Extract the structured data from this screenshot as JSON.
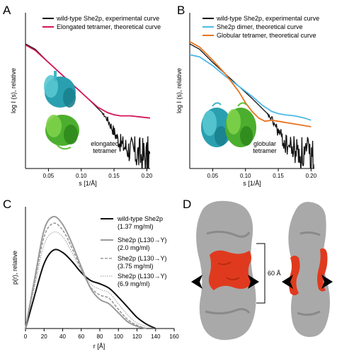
{
  "panels": {
    "A": {
      "letter": "A",
      "legend": [
        "wild-type She2p, experimental curve",
        "Elongated tetramer, theoretical curve"
      ],
      "ylabel": "log I (s), relative",
      "xlabel": "s [1/Å]",
      "xticks": [
        "0.05",
        "0.10",
        "0.15",
        "0.20"
      ],
      "model_label": [
        "elongated",
        "tetramer"
      ]
    },
    "B": {
      "letter": "B",
      "legend": [
        "wild-type She2p, experimental curve",
        "She2p dimer, theoretical curve",
        "Globular tetramer, theoretical curve"
      ],
      "ylabel": "log I (s), relative",
      "xlabel": "s [1/Å]",
      "xticks": [
        "0.05",
        "0.10",
        "0.15",
        "0.20"
      ],
      "model_label": [
        "globular",
        "tetramer"
      ]
    },
    "C": {
      "letter": "C",
      "ylabel": "p(r), relative",
      "xlabel": "r [Å]",
      "xticks": [
        "0",
        "20",
        "40",
        "60",
        "80",
        "100",
        "120",
        "140",
        "160"
      ],
      "legend": [
        {
          "name": "wild-type She2p",
          "conc": "(1.37 mg/ml)"
        },
        {
          "name": "She2p (L130→Y)",
          "conc": "(2.0 mg/ml)"
        },
        {
          "name": "She2p (L130→Y)",
          "conc": "(3.75 mg/ml)"
        },
        {
          "name": "She2p (L130→Y)",
          "conc": "(6.9 mg/ml)"
        }
      ]
    },
    "D": {
      "letter": "D",
      "dimension": "60 Å"
    }
  },
  "colors": {
    "black": "#111111",
    "magenta": "#d4145a",
    "cyan": "#4fb8e6",
    "orange": "#e8731e",
    "gray": "#9a9a9a",
    "red": "#e03a1e"
  },
  "chart_data": [
    {
      "type": "line",
      "panel": "A",
      "xlabel": "s [1/Å]",
      "ylabel": "log I (s), relative",
      "xlim": [
        0.015,
        0.205
      ],
      "series": [
        {
          "name": "wild-type She2p, experimental curve",
          "x": [
            0.015,
            0.03,
            0.05,
            0.07,
            0.09,
            0.11,
            0.125,
            0.14,
            0.15,
            0.16,
            0.175,
            0.19,
            0.205
          ],
          "y": [
            1.0,
            0.95,
            0.83,
            0.72,
            0.61,
            0.5,
            0.41,
            0.32,
            0.22,
            0.12,
            0.08,
            0.05,
            0.03
          ]
        },
        {
          "name": "Elongated tetramer, theoretical curve",
          "x": [
            0.015,
            0.03,
            0.05,
            0.07,
            0.09,
            0.11,
            0.125,
            0.14,
            0.15,
            0.16,
            0.175,
            0.19,
            0.205
          ],
          "y": [
            0.99,
            0.94,
            0.83,
            0.72,
            0.61,
            0.5,
            0.42,
            0.37,
            0.35,
            0.34,
            0.34,
            0.33,
            0.32
          ]
        }
      ]
    },
    {
      "type": "line",
      "panel": "B",
      "xlabel": "s [1/Å]",
      "ylabel": "log I (s), relative",
      "xlim": [
        0.015,
        0.205
      ],
      "series": [
        {
          "name": "wild-type She2p, experimental curve",
          "x": [
            0.015,
            0.03,
            0.05,
            0.07,
            0.09,
            0.11,
            0.125,
            0.14,
            0.15,
            0.16,
            0.175,
            0.19,
            0.205
          ],
          "y": [
            1.0,
            0.95,
            0.83,
            0.72,
            0.61,
            0.5,
            0.41,
            0.32,
            0.22,
            0.12,
            0.08,
            0.05,
            0.03
          ]
        },
        {
          "name": "She2p dimer, theoretical curve",
          "x": [
            0.015,
            0.03,
            0.05,
            0.07,
            0.09,
            0.11,
            0.125,
            0.14,
            0.15,
            0.16,
            0.175,
            0.19,
            0.2
          ],
          "y": [
            0.9,
            0.88,
            0.8,
            0.7,
            0.61,
            0.52,
            0.44,
            0.38,
            0.36,
            0.35,
            0.34,
            0.32,
            0.3
          ]
        },
        {
          "name": "Globular tetramer, theoretical curve",
          "x": [
            0.015,
            0.03,
            0.05,
            0.07,
            0.09,
            0.1,
            0.11,
            0.12,
            0.13,
            0.14,
            0.15,
            0.17,
            0.2
          ],
          "y": [
            1.02,
            0.97,
            0.85,
            0.72,
            0.56,
            0.46,
            0.38,
            0.32,
            0.29,
            0.3,
            0.29,
            0.27,
            0.24
          ]
        }
      ]
    },
    {
      "type": "line",
      "panel": "C",
      "xlabel": "r [Å]",
      "ylabel": "p(r), relative",
      "xlim": [
        0,
        160
      ],
      "series": [
        {
          "name": "wild-type She2p (1.37 mg/ml)",
          "x": [
            0,
            10,
            20,
            30,
            40,
            50,
            60,
            70,
            80,
            90,
            100,
            110,
            120,
            130,
            140
          ],
          "y": [
            0,
            0.3,
            0.58,
            0.7,
            0.68,
            0.6,
            0.5,
            0.43,
            0.4,
            0.36,
            0.28,
            0.19,
            0.1,
            0.04,
            0
          ]
        },
        {
          "name": "She2p (L130→Y) (2.0 mg/ml)",
          "x": [
            0,
            10,
            20,
            30,
            40,
            50,
            60,
            70,
            80,
            90,
            100,
            110,
            120,
            130
          ],
          "y": [
            0,
            0.45,
            0.88,
            1.0,
            0.93,
            0.76,
            0.55,
            0.36,
            0.26,
            0.22,
            0.14,
            0.06,
            0.02,
            0
          ]
        },
        {
          "name": "She2p (L130→Y) (3.75 mg/ml)",
          "x": [
            0,
            10,
            20,
            30,
            40,
            50,
            60,
            70,
            80,
            90,
            100,
            110,
            120,
            130
          ],
          "y": [
            0,
            0.42,
            0.82,
            0.94,
            0.88,
            0.72,
            0.53,
            0.37,
            0.3,
            0.27,
            0.17,
            0.08,
            0.03,
            0
          ]
        },
        {
          "name": "She2p (L130→Y) (6.9 mg/ml)",
          "x": [
            0,
            10,
            20,
            30,
            40,
            50,
            60,
            70,
            80,
            90,
            100,
            110,
            120,
            130,
            140
          ],
          "y": [
            0,
            0.38,
            0.75,
            0.86,
            0.82,
            0.68,
            0.52,
            0.4,
            0.35,
            0.32,
            0.22,
            0.12,
            0.05,
            0.02,
            0
          ]
        }
      ]
    }
  ]
}
